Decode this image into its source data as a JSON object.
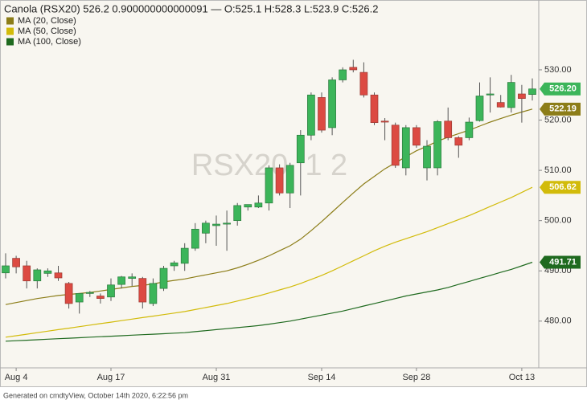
{
  "chart_data": {
    "type": "candlestick",
    "title": "Canola (RSX20) 526.2 0.900000000000091 — O:525.1 H:528.3 L:523.9 C:526.2",
    "watermark": "RSX20, 1 2",
    "categories": [
      null,
      "Aug 4",
      null,
      null,
      null,
      null,
      null,
      null,
      null,
      null,
      "Aug 17",
      null,
      null,
      null,
      null,
      null,
      null,
      null,
      null,
      null,
      "Aug 31",
      null,
      null,
      null,
      null,
      null,
      null,
      null,
      null,
      null,
      "Sep 14",
      null,
      null,
      null,
      null,
      null,
      null,
      null,
      null,
      "Sep 28",
      null,
      null,
      null,
      null,
      null,
      null,
      null,
      null,
      null,
      "Oct 13",
      null
    ],
    "open": [
      489.6,
      492.5,
      491.0,
      488.0,
      489.5,
      489.6,
      487.5,
      483.8,
      485.5,
      485.0,
      484.8,
      487.3,
      488.5,
      488.5,
      483.5,
      486.5,
      491.0,
      491.5,
      494.5,
      497.5,
      499.0,
      499.3,
      500.0,
      502.7,
      502.7,
      503.5,
      510.5,
      505.5,
      511.5,
      517.0,
      524.5,
      518.5,
      528.0,
      530.5,
      529.5,
      525.0,
      519.8,
      519.0,
      510.5,
      518.5,
      510.5,
      510.5,
      519.8,
      516.5,
      516.5,
      519.9,
      525.0,
      523.5,
      522.5,
      525.2,
      525.1
    ],
    "high": [
      493.5,
      493.0,
      492.0,
      490.5,
      490.5,
      491.0,
      487.8,
      485.0,
      486.0,
      485.5,
      488.5,
      489.0,
      489.5,
      488.8,
      488.5,
      491.0,
      492.0,
      495.5,
      499.5,
      500.0,
      501.0,
      502.0,
      503.5,
      503.0,
      505.0,
      511.0,
      511.2,
      511.5,
      518.0,
      525.5,
      525.5,
      528.5,
      530.5,
      532.0,
      531.5,
      525.5,
      520.4,
      519.5,
      519.0,
      519.0,
      516.0,
      520.0,
      522.5,
      516.8,
      520.5,
      527.5,
      528.5,
      525.0,
      529.0,
      527.0,
      528.3
    ],
    "low": [
      488.5,
      489.5,
      486.5,
      486.5,
      488.8,
      488.0,
      482.5,
      481.5,
      484.8,
      483.5,
      484.0,
      486.5,
      487.0,
      482.5,
      483.0,
      486.0,
      490.0,
      490.0,
      494.0,
      495.5,
      495.0,
      494.0,
      499.0,
      502.0,
      502.5,
      502.0,
      505.0,
      502.5,
      505.0,
      516.0,
      517.5,
      517.0,
      527.5,
      529.5,
      524.5,
      519.0,
      516.0,
      510.5,
      509.0,
      514.5,
      508.0,
      509.0,
      516.0,
      512.5,
      516.0,
      519.7,
      521.5,
      522.5,
      521.5,
      519.5,
      523.9
    ],
    "close": [
      491.0,
      490.8,
      488.0,
      490.2,
      490.0,
      488.6,
      483.5,
      485.5,
      485.7,
      484.5,
      487.2,
      488.8,
      488.8,
      483.8,
      487.5,
      490.5,
      491.6,
      494.5,
      498.3,
      499.5,
      499.3,
      499.5,
      503.0,
      503.2,
      503.5,
      510.5,
      505.5,
      511.0,
      517.0,
      525.0,
      518.0,
      528.0,
      530.0,
      530.0,
      525.0,
      519.5,
      519.6,
      511.0,
      518.5,
      515.0,
      514.8,
      519.7,
      516.5,
      515.0,
      519.6,
      524.8,
      525.2,
      522.6,
      527.5,
      524.3,
      526.2
    ],
    "up_color": "#3cb55a",
    "down_color": "#dc4a42",
    "last_label": "526.20",
    "series": [
      {
        "name": "MA (20, Close)",
        "color": "#8c7d18",
        "last_label": "522.19",
        "values": [
          483.3,
          483.7,
          484.1,
          484.5,
          484.8,
          485.1,
          485.3,
          485.5,
          485.7,
          486.0,
          486.3,
          486.6,
          486.9,
          487.1,
          487.4,
          487.8,
          488.1,
          488.4,
          488.8,
          489.2,
          489.6,
          490.0,
          490.6,
          491.3,
          492.1,
          493.0,
          494.0,
          495.0,
          496.3,
          498.0,
          499.8,
          501.7,
          503.6,
          505.5,
          507.3,
          508.8,
          510.3,
          511.5,
          512.7,
          513.9,
          514.8,
          515.8,
          516.6,
          517.3,
          518.0,
          518.8,
          519.6,
          520.3,
          521.0,
          521.6,
          522.19
        ]
      },
      {
        "name": "MA (50, Close)",
        "color": "#d2bb0a",
        "last_label": "506.62",
        "values": [
          476.8,
          477.1,
          477.4,
          477.7,
          478.0,
          478.3,
          478.6,
          478.9,
          479.2,
          479.5,
          479.8,
          480.1,
          480.4,
          480.7,
          481.0,
          481.3,
          481.6,
          481.9,
          482.3,
          482.7,
          483.1,
          483.5,
          484.0,
          484.5,
          485.0,
          485.6,
          486.2,
          486.8,
          487.5,
          488.3,
          489.1,
          490.0,
          491.0,
          492.0,
          493.0,
          494.0,
          494.9,
          495.7,
          496.4,
          497.1,
          497.8,
          498.6,
          499.4,
          500.2,
          501.0,
          501.9,
          502.8,
          503.7,
          504.6,
          505.6,
          506.62
        ]
      },
      {
        "name": "MA (100, Close)",
        "color": "#1f6a1f",
        "last_label": "491.71",
        "values": [
          476.0,
          476.1,
          476.2,
          476.3,
          476.4,
          476.5,
          476.6,
          476.7,
          476.8,
          476.9,
          477.0,
          477.1,
          477.2,
          477.3,
          477.4,
          477.5,
          477.6,
          477.7,
          477.9,
          478.1,
          478.3,
          478.5,
          478.7,
          478.9,
          479.1,
          479.4,
          479.7,
          480.0,
          480.4,
          480.8,
          481.2,
          481.6,
          482.0,
          482.5,
          483.0,
          483.5,
          484.0,
          484.5,
          485.0,
          485.4,
          485.8,
          486.2,
          486.7,
          487.3,
          487.9,
          488.5,
          489.1,
          489.7,
          490.3,
          491.0,
          491.71
        ]
      }
    ],
    "ylim": [
      470.7,
      541.5
    ],
    "yticks": [
      {
        "value": 480,
        "label": "480.00"
      },
      {
        "value": 490,
        "label": "490.00"
      },
      {
        "value": 500,
        "label": "500.00"
      },
      {
        "value": 510,
        "label": "510.00"
      },
      {
        "value": 520,
        "label": "520.00"
      },
      {
        "value": 530,
        "label": "530.00"
      }
    ],
    "grid": false,
    "legend": "top-left"
  },
  "footer": "Generated on cmdtyView, October 14th 2020, 6:22:56 pm"
}
